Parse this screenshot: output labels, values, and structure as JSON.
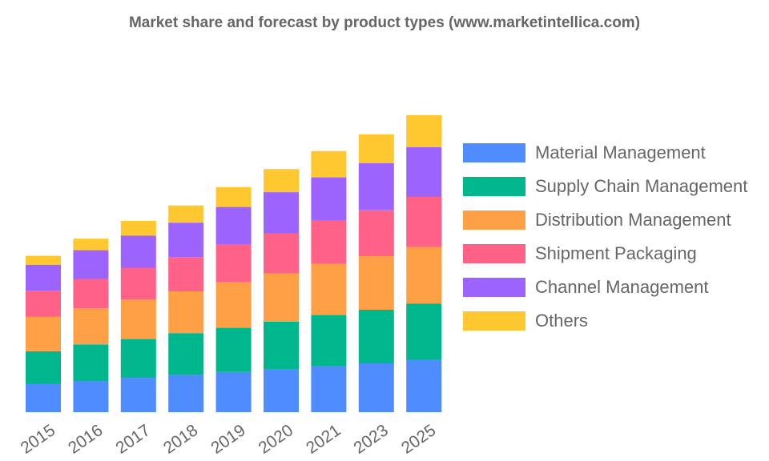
{
  "chart_data": {
    "type": "bar",
    "stacked": true,
    "title": "Market share and forecast by product types (www.marketintellica.com)",
    "categories": [
      "2015",
      "2016",
      "2017",
      "2018",
      "2019",
      "2020",
      "2021",
      "2023",
      "2025"
    ],
    "ylim": [
      0,
      100
    ],
    "grid": false,
    "legend_position": "right",
    "series": [
      {
        "name": "Material Management",
        "color": "#4e8cff",
        "values": [
          9.6,
          10.5,
          11.6,
          12.6,
          13.6,
          14.4,
          15.5,
          16.5,
          17.6
        ]
      },
      {
        "name": "Supply Chain Management",
        "color": "#00b68c",
        "values": [
          11.0,
          12.4,
          13.1,
          14.1,
          14.9,
          16.2,
          17.3,
          18.1,
          19.1
        ]
      },
      {
        "name": "Distribution Management",
        "color": "#ffa046",
        "values": [
          11.6,
          12.2,
          13.3,
          14.1,
          15.4,
          16.2,
          17.3,
          18.1,
          19.1
        ]
      },
      {
        "name": "Shipment Packaging",
        "color": "#ff6187",
        "values": [
          8.8,
          9.9,
          10.8,
          11.6,
          12.7,
          13.6,
          14.6,
          15.5,
          16.9
        ]
      },
      {
        "name": "Channel Management",
        "color": "#9c64fc",
        "values": [
          8.8,
          9.7,
          10.8,
          11.6,
          12.7,
          13.9,
          14.6,
          15.9,
          16.8
        ]
      },
      {
        "name": "Others",
        "color": "#ffc730",
        "values": [
          3.0,
          3.9,
          5.0,
          5.8,
          6.7,
          7.8,
          8.9,
          9.7,
          10.8
        ]
      }
    ]
  }
}
